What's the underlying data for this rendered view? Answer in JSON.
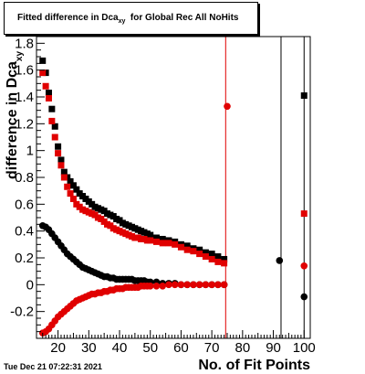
{
  "timestamp": "Tue Dec 21 07:22:31 2021",
  "chart_data": {
    "type": "scatter",
    "title": "Fitted difference in Dca_xy for Global Rec All NoHits",
    "title_main": "Fitted difference in Dca",
    "title_sub": "xy",
    "title_rest": "  for Global Rec All NoHits",
    "xlabel": "No. of Fit Points",
    "ylabel": "difference in Dca",
    "ylabel_sub": "xy",
    "xlim": [
      13,
      102
    ],
    "ylim": [
      -0.4,
      1.85
    ],
    "xticks": [
      "20",
      "30",
      "40",
      "50",
      "60",
      "70",
      "80",
      "90",
      "100"
    ],
    "yticks": [
      "-0.2",
      "0",
      "0.2",
      "0.4",
      "0.6",
      "0.8",
      "1",
      "1.2",
      "1.4",
      "1.6",
      "1.8"
    ],
    "vlines": [
      {
        "x": 74.5,
        "color": "#e00000"
      },
      {
        "x": 92.5,
        "color": "#000000"
      },
      {
        "x": 100,
        "color": "#000000"
      }
    ],
    "series": [
      {
        "color": "#000000",
        "marker": "square",
        "x": [
          15,
          16,
          17,
          18,
          19,
          20,
          21,
          22,
          23,
          24,
          25,
          26,
          27,
          28,
          29,
          30,
          31,
          32,
          33,
          34,
          35,
          36,
          37,
          38,
          39,
          40,
          41,
          42,
          43,
          44,
          45,
          46,
          47,
          48,
          49,
          50,
          52,
          54,
          56,
          58,
          60,
          62,
          64,
          66,
          68,
          70,
          72,
          74,
          100
        ],
        "y": [
          1.67,
          1.58,
          1.43,
          1.31,
          1.18,
          1.03,
          0.93,
          0.84,
          0.8,
          0.77,
          0.74,
          0.71,
          0.68,
          0.66,
          0.64,
          0.62,
          0.6,
          0.58,
          0.57,
          0.56,
          0.55,
          0.53,
          0.52,
          0.51,
          0.49,
          0.48,
          0.46,
          0.45,
          0.44,
          0.43,
          0.42,
          0.41,
          0.4,
          0.39,
          0.38,
          0.37,
          0.35,
          0.34,
          0.33,
          0.32,
          0.3,
          0.29,
          0.27,
          0.26,
          0.24,
          0.23,
          0.21,
          0.19,
          1.41
        ]
      },
      {
        "color": "#000000",
        "marker": "circle",
        "x": [
          15,
          16,
          17,
          18,
          19,
          20,
          21,
          22,
          23,
          24,
          25,
          26,
          27,
          28,
          29,
          30,
          31,
          32,
          33,
          34,
          35,
          36,
          37,
          38,
          39,
          40,
          41,
          42,
          43,
          44,
          45,
          46,
          47,
          48,
          49,
          50,
          52,
          54,
          56,
          58,
          60,
          62,
          64,
          66,
          68,
          70,
          72,
          74,
          92,
          100
        ],
        "y": [
          0.44,
          0.43,
          0.41,
          0.38,
          0.35,
          0.32,
          0.29,
          0.26,
          0.23,
          0.21,
          0.19,
          0.17,
          0.15,
          0.13,
          0.12,
          0.11,
          0.1,
          0.09,
          0.08,
          0.07,
          0.06,
          0.06,
          0.05,
          0.05,
          0.04,
          0.04,
          0.04,
          0.04,
          0.04,
          0.04,
          0.03,
          0.03,
          0.03,
          0.03,
          0.02,
          0.02,
          0.02,
          0.01,
          0.01,
          0.01,
          0.0,
          0.0,
          0.0,
          0.0,
          0.0,
          0.0,
          0.0,
          0.0,
          0.18,
          -0.09
        ]
      },
      {
        "color": "#e00000",
        "marker": "square",
        "x": [
          15,
          16,
          17,
          18,
          19,
          20,
          21,
          22,
          23,
          24,
          25,
          26,
          27,
          28,
          29,
          30,
          31,
          32,
          33,
          34,
          35,
          36,
          37,
          38,
          39,
          40,
          41,
          42,
          43,
          44,
          45,
          46,
          47,
          48,
          49,
          50,
          52,
          54,
          56,
          58,
          60,
          62,
          64,
          66,
          68,
          70,
          72,
          74,
          100
        ],
        "y": [
          1.58,
          1.48,
          1.39,
          1.22,
          1.1,
          0.98,
          0.89,
          0.8,
          0.73,
          0.68,
          0.64,
          0.6,
          0.58,
          0.56,
          0.55,
          0.54,
          0.53,
          0.52,
          0.5,
          0.49,
          0.47,
          0.45,
          0.44,
          0.42,
          0.41,
          0.4,
          0.39,
          0.38,
          0.37,
          0.36,
          0.35,
          0.35,
          0.34,
          0.34,
          0.33,
          0.33,
          0.32,
          0.31,
          0.31,
          0.3,
          0.28,
          0.26,
          0.25,
          0.23,
          0.21,
          0.19,
          0.17,
          0.16,
          0.53
        ]
      },
      {
        "color": "#e00000",
        "marker": "circle",
        "x": [
          15,
          16,
          17,
          18,
          19,
          20,
          21,
          22,
          23,
          24,
          25,
          26,
          27,
          28,
          29,
          30,
          31,
          32,
          33,
          34,
          35,
          36,
          37,
          38,
          39,
          40,
          41,
          42,
          43,
          44,
          45,
          46,
          47,
          48,
          49,
          50,
          52,
          54,
          56,
          58,
          60,
          62,
          64,
          66,
          68,
          70,
          72,
          74,
          75,
          100
        ],
        "y": [
          -0.36,
          -0.35,
          -0.33,
          -0.3,
          -0.27,
          -0.24,
          -0.22,
          -0.2,
          -0.18,
          -0.16,
          -0.14,
          -0.12,
          -0.11,
          -0.1,
          -0.09,
          -0.08,
          -0.07,
          -0.07,
          -0.06,
          -0.06,
          -0.05,
          -0.05,
          -0.04,
          -0.04,
          -0.03,
          -0.03,
          -0.03,
          -0.02,
          -0.02,
          -0.02,
          -0.02,
          -0.02,
          -0.01,
          -0.01,
          -0.01,
          -0.01,
          -0.01,
          -0.01,
          0.0,
          0.0,
          0.0,
          0.0,
          0.0,
          0.0,
          0.0,
          0.0,
          0.0,
          0.0,
          1.33,
          0.14
        ]
      }
    ]
  }
}
